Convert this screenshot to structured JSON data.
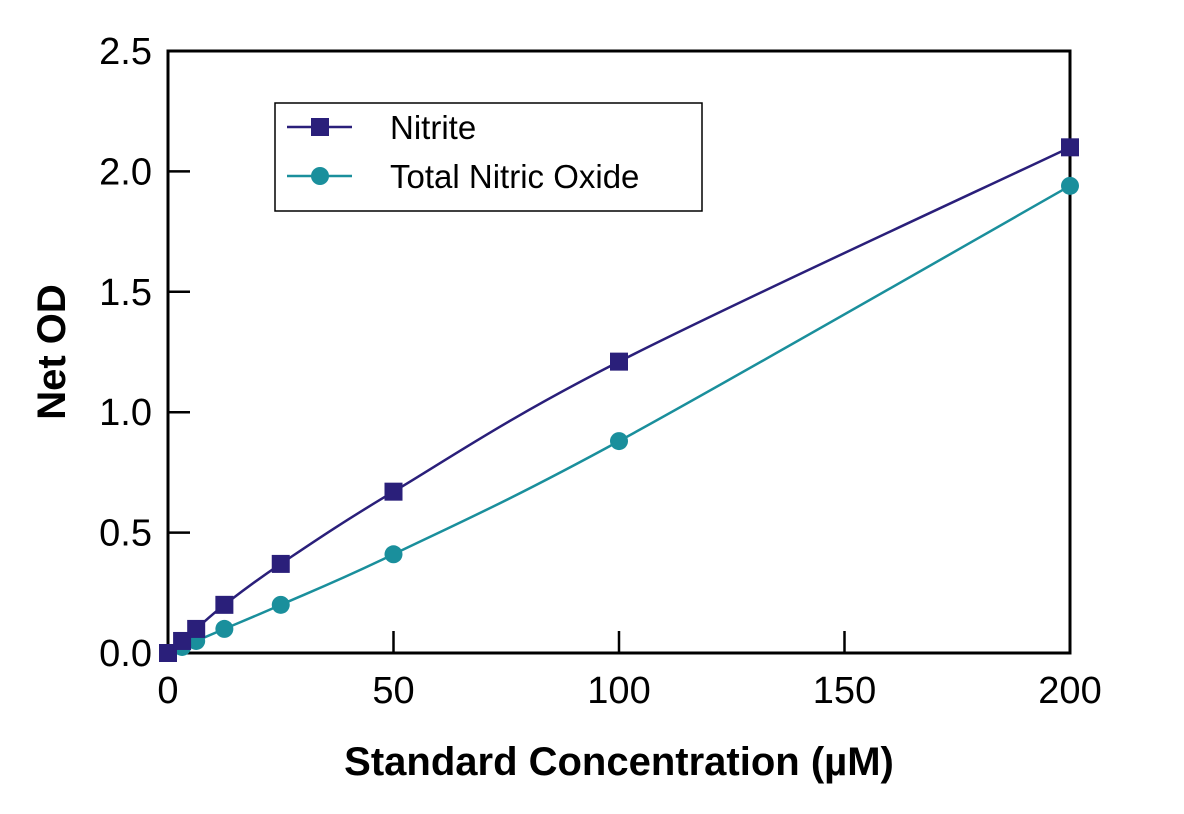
{
  "chart_data": {
    "type": "line",
    "title": "",
    "xlabel": "Standard Concentration (µM)",
    "ylabel": "Net OD",
    "xlim": [
      0,
      200
    ],
    "ylim": [
      0,
      2.5
    ],
    "xticks": [
      0,
      50,
      100,
      150,
      200
    ],
    "xtick_labels": [
      "0",
      "50",
      "100",
      "150",
      "200"
    ],
    "yticks": [
      0,
      0.5,
      1.0,
      1.5,
      2.0,
      2.5
    ],
    "ytick_labels": [
      "0.0",
      "0.5",
      "1.0",
      "1.5",
      "2.0",
      "2.5"
    ],
    "grid": false,
    "legend_position": "top-left",
    "series": [
      {
        "name": "Nitrite",
        "marker": "square",
        "color": "#2a1f7a",
        "x": [
          0,
          3.125,
          6.25,
          12.5,
          25,
          50,
          100,
          200
        ],
        "y": [
          0.0,
          0.05,
          0.1,
          0.2,
          0.37,
          0.67,
          1.21,
          2.1
        ]
      },
      {
        "name": "Total Nitric Oxide",
        "marker": "circle",
        "color": "#1a8f9c",
        "x": [
          0,
          3.125,
          6.25,
          12.5,
          25,
          50,
          100,
          200
        ],
        "y": [
          0.0,
          0.025,
          0.05,
          0.1,
          0.2,
          0.41,
          0.88,
          1.94
        ]
      }
    ]
  }
}
